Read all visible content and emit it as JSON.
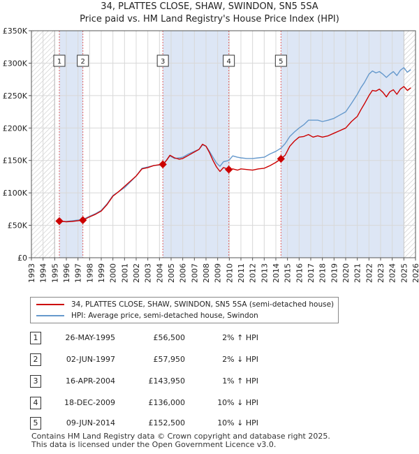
{
  "chart_data": {
    "type": "line",
    "title": "34, PLATTES CLOSE, SHAW, SWINDON, SN5 5SA",
    "subtitle": "Price paid vs. HM Land Registry's House Price Index (HPI)",
    "xlim": [
      1993,
      2026
    ],
    "ylim": [
      0,
      350000
    ],
    "y_ticks": [
      0,
      50000,
      100000,
      150000,
      200000,
      250000,
      300000,
      350000
    ],
    "y_tick_labels": [
      "£0",
      "£50K",
      "£100K",
      "£150K",
      "£200K",
      "£250K",
      "£300K",
      "£350K"
    ],
    "x_ticks": [
      1993,
      1994,
      1995,
      1996,
      1997,
      1998,
      1999,
      2000,
      2001,
      2002,
      2003,
      2004,
      2005,
      2006,
      2007,
      2008,
      2009,
      2010,
      2011,
      2012,
      2013,
      2014,
      2015,
      2016,
      2017,
      2018,
      2019,
      2020,
      2021,
      2022,
      2023,
      2024,
      2025,
      2026
    ],
    "grid": true,
    "hatched_ranges": [
      [
        1993,
        1995.0
      ],
      [
        2025.0,
        2026
      ]
    ],
    "colors": {
      "property": "#cc0000",
      "hpi": "#6699cc",
      "marker": "#cc0000",
      "shade": "#dde6f5",
      "vline": "#e06060"
    },
    "series": [
      {
        "name": "34, PLATTES CLOSE, SHAW, SWINDON, SN5 5SA (semi-detached house)",
        "x": [
          1995.4,
          1996.0,
          1996.5,
          1997.42,
          1998.0,
          1998.5,
          1999.0,
          1999.5,
          2000.0,
          2000.5,
          2001.0,
          2001.5,
          2002.0,
          2002.5,
          2003.0,
          2003.5,
          2004.0,
          2004.29,
          2004.6,
          2004.9,
          2005.3,
          2005.7,
          2006.0,
          2006.5,
          2007.0,
          2007.4,
          2007.7,
          2008.0,
          2008.3,
          2008.6,
          2008.9,
          2009.2,
          2009.5,
          2009.96,
          2010.3,
          2010.7,
          2011.0,
          2011.5,
          2012.0,
          2012.5,
          2013.0,
          2013.5,
          2014.0,
          2014.44,
          2014.8,
          2015.2,
          2015.6,
          2016.0,
          2016.4,
          2016.8,
          2017.2,
          2017.6,
          2018.0,
          2018.5,
          2019.0,
          2019.5,
          2020.0,
          2020.5,
          2021.0,
          2021.3,
          2021.6,
          2022.0,
          2022.3,
          2022.6,
          2022.9,
          2023.2,
          2023.5,
          2023.8,
          2024.1,
          2024.4,
          2024.7,
          2025.0,
          2025.3,
          2025.6
        ],
        "values": [
          56500,
          55500,
          56000,
          57950,
          63000,
          67000,
          72000,
          82000,
          95000,
          102000,
          110000,
          118000,
          126000,
          137000,
          139000,
          142000,
          143500,
          143950,
          150000,
          158000,
          154000,
          152000,
          153000,
          158000,
          163000,
          167000,
          175000,
          172000,
          162000,
          150000,
          140000,
          133000,
          139000,
          136000,
          137000,
          135000,
          137000,
          136000,
          135000,
          137000,
          138000,
          142000,
          147000,
          152500,
          158000,
          172000,
          180000,
          186000,
          187000,
          190000,
          186000,
          188000,
          186000,
          188000,
          192000,
          196000,
          200000,
          210000,
          218000,
          228000,
          237000,
          250000,
          258000,
          257000,
          260000,
          255000,
          248000,
          256000,
          259000,
          252000,
          260000,
          264000,
          258000,
          262000
        ]
      },
      {
        "name": "HPI: Average price, semi-detached house, Swindon",
        "x": [
          1995.4,
          1996.0,
          1996.5,
          1997.42,
          1998.0,
          1998.5,
          1999.0,
          1999.5,
          2000.0,
          2000.5,
          2001.0,
          2001.5,
          2002.0,
          2002.5,
          2003.0,
          2003.5,
          2004.0,
          2004.29,
          2004.6,
          2004.9,
          2005.3,
          2005.7,
          2006.0,
          2006.5,
          2007.0,
          2007.4,
          2007.7,
          2008.0,
          2008.3,
          2008.6,
          2008.9,
          2009.2,
          2009.5,
          2009.96,
          2010.3,
          2010.7,
          2011.0,
          2011.5,
          2012.0,
          2012.5,
          2013.0,
          2013.5,
          2014.0,
          2014.44,
          2014.8,
          2015.2,
          2015.6,
          2016.0,
          2016.4,
          2016.8,
          2017.2,
          2017.6,
          2018.0,
          2018.5,
          2019.0,
          2019.5,
          2020.0,
          2020.5,
          2021.0,
          2021.3,
          2021.6,
          2022.0,
          2022.3,
          2022.6,
          2022.9,
          2023.2,
          2023.5,
          2023.8,
          2024.1,
          2024.4,
          2024.7,
          2025.0,
          2025.3,
          2025.6
        ],
        "values": [
          55500,
          56000,
          57000,
          59000,
          64000,
          68000,
          73000,
          83000,
          96000,
          102000,
          108000,
          117000,
          126000,
          138000,
          140000,
          142000,
          143000,
          142500,
          150000,
          157000,
          153000,
          154000,
          155000,
          160000,
          164000,
          167000,
          174000,
          172000,
          164000,
          155000,
          146000,
          141000,
          148000,
          150000,
          157000,
          155000,
          154000,
          153000,
          153000,
          154000,
          155000,
          160000,
          164000,
          169000,
          176000,
          187000,
          194000,
          200000,
          205000,
          212000,
          212000,
          212000,
          210000,
          212000,
          215000,
          220000,
          225000,
          238000,
          252000,
          262000,
          270000,
          283000,
          288000,
          285000,
          287000,
          283000,
          278000,
          283000,
          287000,
          281000,
          289000,
          293000,
          286000,
          290000
        ]
      }
    ],
    "sales": [
      {
        "label": "1",
        "x": 1995.4,
        "value": 56500
      },
      {
        "label": "2",
        "x": 1997.42,
        "value": 57950
      },
      {
        "label": "3",
        "x": 2004.29,
        "value": 143950
      },
      {
        "label": "4",
        "x": 2009.96,
        "value": 136000
      },
      {
        "label": "5",
        "x": 2014.44,
        "value": 152500
      }
    ]
  },
  "legend": {
    "property_label": "34, PLATTES CLOSE, SHAW, SWINDON, SN5 5SA (semi-detached house)",
    "hpi_label": "HPI: Average price, semi-detached house, Swindon"
  },
  "transactions": [
    {
      "num": "1",
      "date": "26-MAY-1995",
      "price": "£56,500",
      "hpi": "2% ↑ HPI"
    },
    {
      "num": "2",
      "date": "02-JUN-1997",
      "price": "£57,950",
      "hpi": "2% ↓ HPI"
    },
    {
      "num": "3",
      "date": "16-APR-2004",
      "price": "£143,950",
      "hpi": "1% ↑ HPI"
    },
    {
      "num": "4",
      "date": "18-DEC-2009",
      "price": "£136,000",
      "hpi": "10% ↓ HPI"
    },
    {
      "num": "5",
      "date": "09-JUN-2014",
      "price": "£152,500",
      "hpi": "10% ↓ HPI"
    }
  ],
  "footer": {
    "line1": "Contains HM Land Registry data © Crown copyright and database right 2025.",
    "line2": "This data is licensed under the Open Government Licence v3.0."
  }
}
